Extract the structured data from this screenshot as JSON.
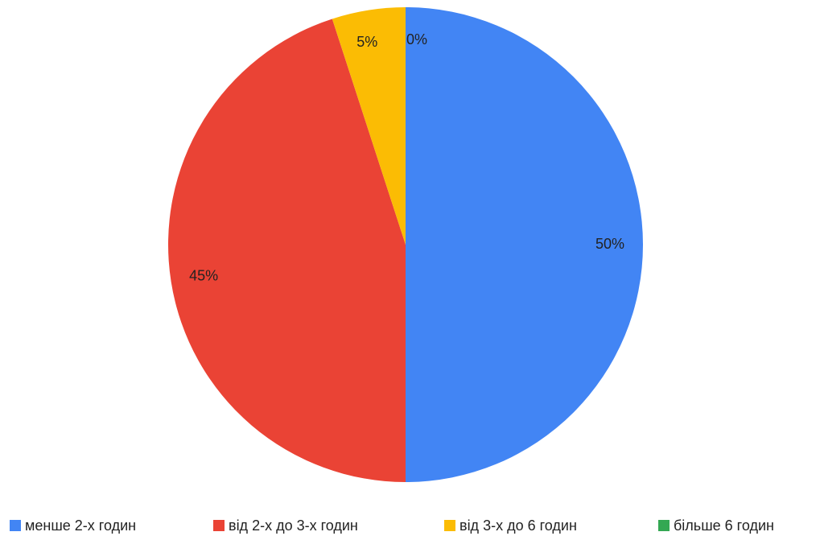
{
  "chart_data": {
    "type": "pie",
    "categories": [
      "менше 2-х годин",
      "від 2-х до 3-х годин",
      "від 3-х до 6 годин",
      "більше 6 годин"
    ],
    "values": [
      50,
      45,
      5,
      0
    ],
    "value_labels": [
      "50%",
      "45%",
      "5%",
      "0%"
    ],
    "colors": [
      "#4285f4",
      "#ea4335",
      "#fbbc04",
      "#34a853"
    ],
    "legend": "bottom"
  }
}
